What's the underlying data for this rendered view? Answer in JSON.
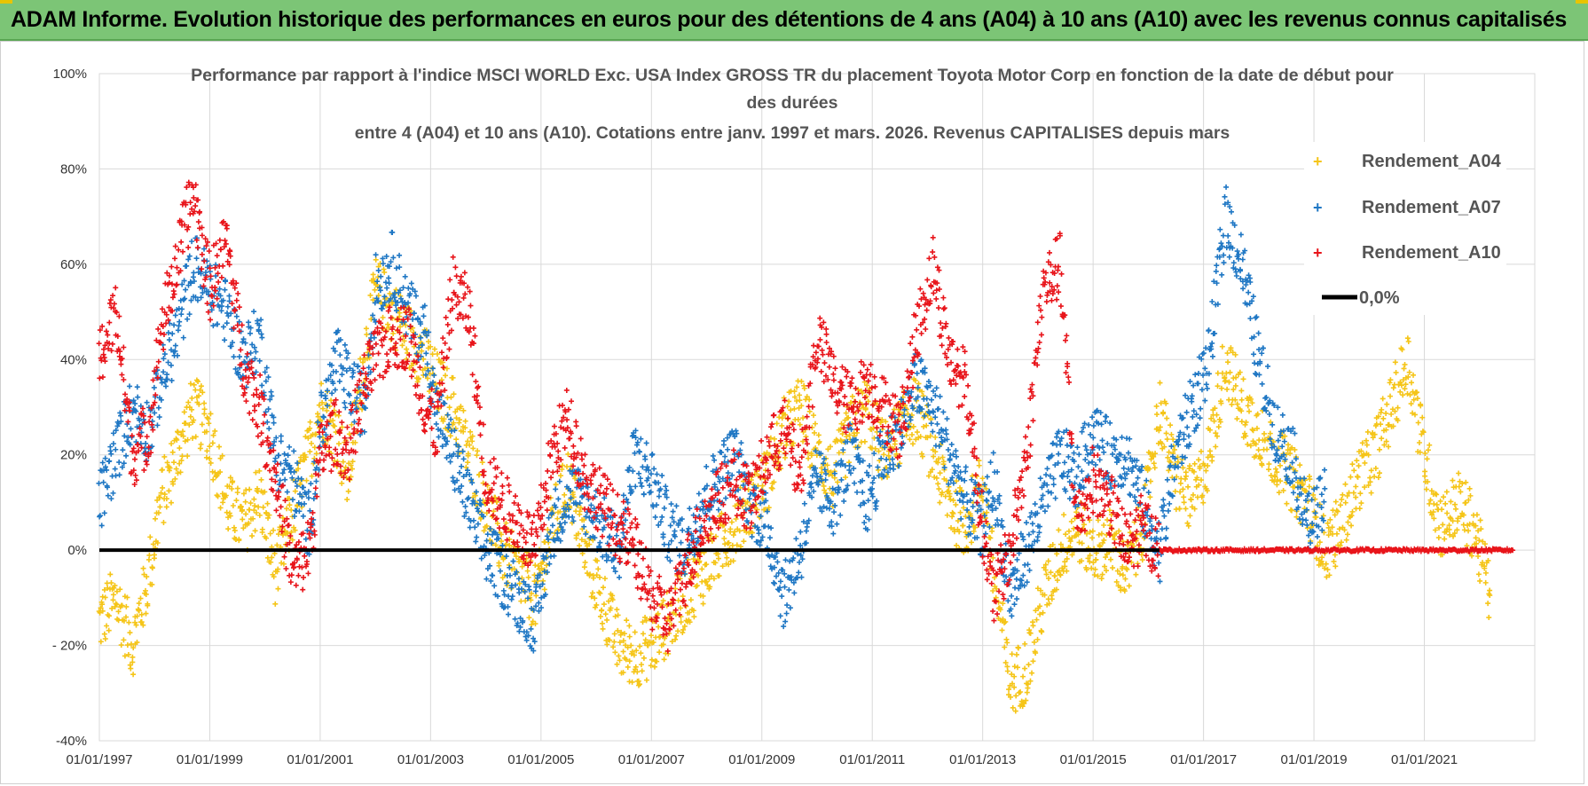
{
  "header": {
    "title": "ADAM Informe. Evolution historique des performances en euros pour des détentions de 4 ans (A04) à 10 ans (A10) avec les revenus connus capitalisés"
  },
  "chart_data": {
    "type": "scatter",
    "title_lines": [
      "Performance par rapport à l'indice MSCI WORLD Exc. USA Index GROSS TR  du placement Toyota Motor Corp en fonction de la date de début pour",
      "des durées",
      "entre 4 (A04) et 10 ans (A10).  Cotations entre janv. 1997 et mars. 2026. Revenus CAPITALISES depuis mars"
    ],
    "ylim": [
      -40,
      100
    ],
    "y_ticks": [
      100,
      80,
      60,
      40,
      20,
      0,
      -20,
      -40
    ],
    "y_tick_labels": [
      "100%",
      "80%",
      "60%",
      "40%",
      "20%",
      "0%",
      "- 20%",
      "-40%"
    ],
    "xlim": [
      1997.0,
      2023.0
    ],
    "x_ticks": [
      1997,
      1999,
      2001,
      2003,
      2005,
      2007,
      2009,
      2011,
      2013,
      2015,
      2017,
      2019,
      2021
    ],
    "x_tick_labels": [
      "01/01/1997",
      "01/01/1999",
      "01/01/2001",
      "01/01/2003",
      "01/01/2005",
      "01/01/2007",
      "01/01/2009",
      "01/01/2011",
      "01/01/2013",
      "01/01/2015",
      "01/01/2017",
      "01/01/2019",
      "01/01/2021"
    ],
    "legend_position": "top-right",
    "series": [
      {
        "name": "Rendement_A04",
        "color": "#f5c518",
        "marker": "plus",
        "x": [
          1997.0,
          1997.3,
          1997.6,
          1997.9,
          1998.1,
          1998.4,
          1998.7,
          1999.0,
          1999.3,
          1999.6,
          1999.9,
          2000.2,
          2000.5,
          2000.8,
          2001.0,
          2001.3,
          2001.5,
          2001.8,
          2002.0,
          2002.3,
          2002.6,
          2002.9,
          2003.1,
          2003.4,
          2003.7,
          2004.0,
          2004.3,
          2004.6,
          2004.9,
          2005.2,
          2005.5,
          2005.8,
          2006.1,
          2006.4,
          2006.7,
          2007.0,
          2007.3,
          2007.6,
          2007.9,
          2008.2,
          2008.5,
          2008.8,
          2009.1,
          2009.4,
          2009.7,
          2010.0,
          2010.3,
          2010.6,
          2010.9,
          2011.2,
          2011.5,
          2011.8,
          2012.1,
          2012.4,
          2012.7,
          2013.0,
          2013.2,
          2013.5,
          2013.8,
          2014.1,
          2014.4,
          2014.7,
          2015.0,
          2015.3,
          2015.6,
          2015.9,
          2016.2,
          2016.5,
          2016.8,
          2017.1,
          2017.4,
          2017.7,
          2018.0,
          2018.3,
          2018.6,
          2018.9,
          2019.2,
          2019.5,
          2019.8,
          2020.1,
          2020.4,
          2020.7,
          2021.0,
          2021.3,
          2021.6,
          2021.9,
          2022.2
        ],
        "y": [
          -15,
          -10,
          -20,
          -5,
          10,
          20,
          30,
          25,
          10,
          5,
          12,
          -5,
          8,
          20,
          30,
          25,
          15,
          40,
          55,
          50,
          45,
          40,
          35,
          30,
          20,
          10,
          0,
          -5,
          -10,
          5,
          15,
          0,
          -10,
          -20,
          -22,
          -20,
          -15,
          -10,
          -5,
          0,
          5,
          10,
          15,
          25,
          30,
          20,
          15,
          25,
          30,
          20,
          25,
          30,
          20,
          10,
          5,
          15,
          -5,
          -28,
          -25,
          -10,
          0,
          5,
          0,
          2,
          -5,
          5,
          30,
          15,
          10,
          20,
          40,
          30,
          25,
          20,
          15,
          10,
          0,
          5,
          15,
          20,
          30,
          40,
          20,
          5,
          10,
          5,
          -10
        ],
        "y_to_2022_end": -15
      },
      {
        "name": "Rendement_A07",
        "color": "#1f77c4",
        "marker": "plus",
        "x": [
          1997.0,
          1997.3,
          1997.6,
          1997.9,
          1998.1,
          1998.4,
          1998.7,
          1999.0,
          1999.3,
          1999.6,
          1999.9,
          2000.2,
          2000.5,
          2000.8,
          2001.0,
          2001.3,
          2001.5,
          2001.8,
          2002.0,
          2002.3,
          2002.6,
          2002.9,
          2003.1,
          2003.4,
          2003.7,
          2004.0,
          2004.3,
          2004.6,
          2004.9,
          2005.2,
          2005.5,
          2005.8,
          2006.1,
          2006.4,
          2006.7,
          2007.0,
          2007.3,
          2007.6,
          2007.9,
          2008.2,
          2008.5,
          2008.8,
          2009.1,
          2009.4,
          2009.7,
          2010.0,
          2010.3,
          2010.6,
          2010.9,
          2011.2,
          2011.5,
          2011.8,
          2012.1,
          2012.4,
          2012.7,
          2013.0,
          2013.2,
          2013.5,
          2013.8,
          2014.1,
          2014.4,
          2014.7,
          2015.0,
          2015.3,
          2015.6,
          2015.9,
          2016.2,
          2016.5,
          2016.8,
          2017.1,
          2017.4,
          2017.7,
          2018.0,
          2018.3,
          2018.6,
          2018.9,
          2019.2
        ],
        "y": [
          10,
          20,
          30,
          25,
          35,
          45,
          60,
          55,
          50,
          40,
          45,
          20,
          15,
          5,
          25,
          40,
          35,
          30,
          55,
          60,
          50,
          45,
          30,
          20,
          10,
          0,
          -5,
          -10,
          -15,
          5,
          12,
          10,
          5,
          0,
          20,
          15,
          5,
          0,
          10,
          15,
          20,
          10,
          5,
          -10,
          0,
          15,
          10,
          20,
          10,
          20,
          25,
          35,
          30,
          20,
          10,
          5,
          15,
          -10,
          0,
          10,
          20,
          15,
          25,
          20,
          20,
          10,
          0,
          20,
          30,
          40,
          70,
          60,
          40,
          25,
          20,
          5,
          10
        ]
      },
      {
        "name": "Rendement_A10",
        "color": "#e8141a",
        "marker": "plus",
        "x": [
          1997.0,
          1997.3,
          1997.6,
          1997.9,
          1998.1,
          1998.4,
          1998.7,
          1999.0,
          1999.3,
          1999.6,
          1999.9,
          2000.2,
          2000.5,
          2000.8,
          2001.0,
          2001.3,
          2001.5,
          2001.8,
          2002.0,
          2002.3,
          2002.6,
          2002.9,
          2003.1,
          2003.4,
          2003.7,
          2004.0,
          2004.3,
          2004.6,
          2004.9,
          2005.2,
          2005.5,
          2005.8,
          2006.1,
          2006.4,
          2006.7,
          2007.0,
          2007.3,
          2007.6,
          2007.9,
          2008.2,
          2008.5,
          2008.8,
          2009.1,
          2009.4,
          2009.7,
          2010.0,
          2010.3,
          2010.6,
          2010.9,
          2011.2,
          2011.5,
          2011.8,
          2012.1,
          2012.4,
          2012.7,
          2013.0,
          2013.2,
          2013.5,
          2013.8,
          2014.1,
          2014.4,
          2014.7,
          2015.0,
          2015.3,
          2015.6,
          2015.9,
          2016.2
        ],
        "y": [
          40,
          50,
          20,
          25,
          45,
          60,
          75,
          55,
          65,
          40,
          30,
          15,
          -5,
          0,
          20,
          25,
          20,
          35,
          40,
          45,
          45,
          30,
          25,
          55,
          50,
          15,
          10,
          5,
          0,
          20,
          28,
          15,
          10,
          5,
          0,
          -10,
          -15,
          -5,
          5,
          10,
          15,
          10,
          20,
          25,
          15,
          45,
          35,
          30,
          35,
          30,
          25,
          45,
          60,
          40,
          35,
          5,
          -10,
          0,
          20,
          55,
          60,
          5,
          15,
          10,
          0,
          5,
          0
        ],
        "y_after_2016": 0
      }
    ],
    "reference_line": {
      "name": "0,0%",
      "value": 0,
      "color": "#000000"
    }
  }
}
